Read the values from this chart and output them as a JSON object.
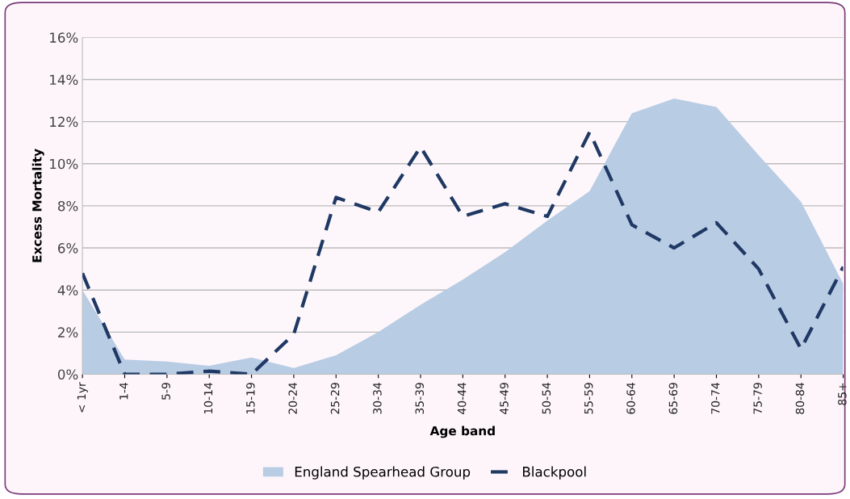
{
  "chart_data": {
    "type": "area",
    "xlabel": "Age band",
    "ylabel": "Excess Mortality",
    "categories": [
      "< 1yr",
      "1-4",
      "5-9",
      "10-14",
      "15-19",
      "20-24",
      "25-29",
      "30-34",
      "35-39",
      "40-44",
      "45-49",
      "50-54",
      "55-59",
      "60-64",
      "65-69",
      "70-74",
      "75-79",
      "80-84",
      "85+"
    ],
    "series": [
      {
        "name": "England Spearhead Group",
        "color": "#b8cce4",
        "values": [
          4.0,
          0.7,
          0.6,
          0.4,
          0.8,
          0.3,
          0.9,
          2.0,
          3.3,
          4.5,
          5.8,
          7.3,
          8.7,
          12.4,
          13.1,
          12.7,
          10.4,
          8.2,
          4.3
        ]
      },
      {
        "name": "Blackpool",
        "type": "line",
        "line_style": "dashed",
        "color": "#1f3864",
        "values": [
          4.8,
          0.0,
          0.0,
          0.15,
          0.0,
          1.9,
          8.4,
          7.7,
          10.8,
          7.5,
          8.1,
          7.5,
          11.5,
          7.1,
          6.0,
          7.2,
          5.0,
          1.2,
          5.1
        ]
      }
    ],
    "ylim": [
      0,
      16
    ],
    "yticks": [
      {
        "value": 0,
        "label": "0%"
      },
      {
        "value": 2,
        "label": "2%"
      },
      {
        "value": 4,
        "label": "4%"
      },
      {
        "value": 6,
        "label": "6%"
      },
      {
        "value": 8,
        "label": "8%"
      },
      {
        "value": 10,
        "label": "10%"
      },
      {
        "value": 12,
        "label": "12%"
      },
      {
        "value": 14,
        "label": "14%"
      },
      {
        "value": 16,
        "label": "16%"
      }
    ],
    "grid": "y",
    "legend": "bottom",
    "marker": "none"
  }
}
